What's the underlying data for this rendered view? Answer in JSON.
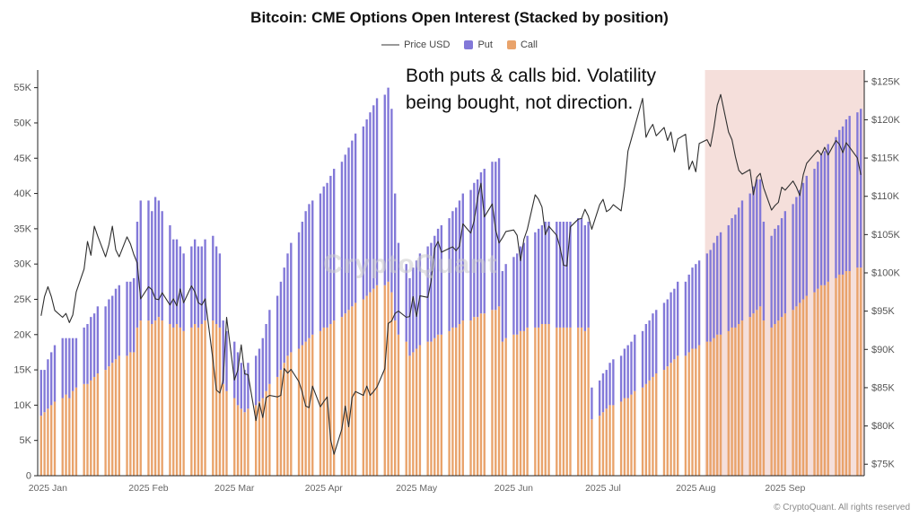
{
  "title": "Bitcoin: CME Options Open Interest (Stacked by position)",
  "legend": {
    "price": "Price USD",
    "put": "Put",
    "call": "Call"
  },
  "annotation": {
    "line1": "Both puts & calls bid. Volatility",
    "line2": "being bought, not direction."
  },
  "watermark": "CryptoQuant",
  "footer": "© CryptoQuant. All rights reserved",
  "colors": {
    "put": "#8278d8",
    "call": "#e9a36b",
    "price": "#2f2f2f",
    "legend_line": "#9a9a9a",
    "highlight": "#f5dfdb",
    "axis": "#222222",
    "tick_text": "#555555",
    "month_text": "#666666"
  },
  "chart_data": {
    "type": "bar",
    "stacked": true,
    "units": "contracts (thousands), price in $K USD",
    "title": "Bitcoin: CME Options Open Interest (Stacked by position)",
    "left_axis": {
      "min": 0,
      "max": 57.5,
      "tick_values": [
        0,
        5,
        10,
        15,
        20,
        25,
        30,
        35,
        40,
        45,
        50,
        55
      ],
      "tick_labels": [
        "0",
        "5K",
        "10K",
        "15K",
        "20K",
        "25K",
        "30K",
        "35K",
        "40K",
        "45K",
        "50K",
        "55K"
      ]
    },
    "right_axis": {
      "min": 73.5,
      "max": 126.5,
      "tick_values": [
        75,
        80,
        85,
        90,
        95,
        100,
        105,
        110,
        115,
        120,
        125
      ],
      "tick_labels": [
        "$75K",
        "$80K",
        "$85K",
        "$90K",
        "$95K",
        "$100K",
        "$105K",
        "$110K",
        "$115K",
        "$120K",
        "$125K"
      ]
    },
    "months": [
      {
        "label": "2025 Jan",
        "start": 0
      },
      {
        "label": "2025 Feb",
        "start": 23
      },
      {
        "label": "2025 Mar",
        "start": 43
      },
      {
        "label": "2025 Apr",
        "start": 64
      },
      {
        "label": "2025 May",
        "start": 86
      },
      {
        "label": "2025 Jun",
        "start": 108
      },
      {
        "label": "2025 Jul",
        "start": 129
      },
      {
        "label": "2025 Aug",
        "start": 151
      },
      {
        "label": "2025 Sep",
        "start": 172
      }
    ],
    "highlight_region": {
      "start_index": 155,
      "end_index": 191
    },
    "series": [
      {
        "name": "Call",
        "color": "#e9a36b",
        "values": [
          8.5,
          9,
          9.5,
          10,
          10.5,
          11,
          11.5,
          11,
          12,
          12.5,
          13,
          13,
          13.5,
          14,
          14.5,
          15,
          15.5,
          16,
          16.5,
          17,
          17,
          17.5,
          17.5,
          21,
          22,
          22,
          21.5,
          22,
          22.5,
          22,
          21.5,
          21,
          21.5,
          21,
          20.5,
          21,
          21.5,
          21,
          21.5,
          22,
          22,
          21.5,
          21,
          13,
          12,
          11,
          10,
          9.5,
          9,
          9.5,
          10,
          10.5,
          11,
          12,
          13,
          14,
          15,
          16,
          17,
          17.5,
          18,
          18.5,
          19,
          19.5,
          20,
          20.5,
          21,
          21,
          21.5,
          22,
          22.5,
          23,
          23.5,
          24,
          24.5,
          25,
          25.5,
          26,
          26.5,
          27,
          27,
          27.5,
          26,
          22,
          20,
          19,
          17,
          17.5,
          18,
          18.5,
          19,
          19,
          19.5,
          20,
          20,
          20.5,
          21,
          21,
          21.5,
          22,
          22,
          22.5,
          22.5,
          23,
          23,
          23.5,
          23.5,
          24,
          19,
          19.5,
          20,
          20,
          20.5,
          20.5,
          21,
          21,
          21,
          21.5,
          21.5,
          21.5,
          21,
          21,
          21,
          21,
          21,
          21,
          21,
          20.5,
          21,
          8,
          8.5,
          9,
          9.5,
          10,
          10,
          10.5,
          11,
          11,
          11.5,
          12,
          12.5,
          13,
          13.5,
          14,
          14.5,
          15,
          15.5,
          16,
          16.5,
          17,
          17,
          17.5,
          18,
          18,
          18.5,
          19,
          19,
          19.5,
          20,
          20,
          20.5,
          21,
          21,
          21.5,
          22,
          22.5,
          23,
          23.5,
          24,
          22,
          21,
          21.5,
          22,
          22.5,
          23,
          23.5,
          24,
          24.5,
          25,
          25.5,
          26,
          26.5,
          27,
          27,
          27.5,
          28,
          28.5,
          28.5,
          29,
          29,
          29.5,
          29.5
        ]
      },
      {
        "name": "Put",
        "color": "#8278d8",
        "values": [
          6.5,
          6,
          7,
          7.5,
          8,
          8.5,
          8,
          8.5,
          7.5,
          7,
          8,
          8.5,
          9,
          9,
          9.5,
          9,
          9.5,
          9.5,
          10,
          10,
          10.5,
          10,
          10.5,
          15,
          17,
          17,
          16,
          17.5,
          16.5,
          15.5,
          14,
          12.5,
          12,
          11.5,
          11,
          11.5,
          12,
          11.5,
          11,
          11.5,
          12,
          11,
          10.5,
          9,
          8.5,
          8,
          7.5,
          6.5,
          6,
          6.5,
          7,
          7.5,
          8.5,
          9.5,
          10.5,
          11.5,
          12.5,
          13.5,
          14.5,
          15.5,
          16.5,
          17.5,
          18.5,
          19,
          19,
          19.5,
          20,
          20.5,
          21,
          21.5,
          22,
          22.5,
          23,
          23.5,
          24,
          24.5,
          25,
          25.5,
          26,
          26.5,
          27,
          27.5,
          26,
          18,
          13,
          11,
          11,
          12,
          12.5,
          13,
          13.5,
          14,
          14.5,
          15,
          15.5,
          16,
          16.5,
          17,
          17.5,
          18,
          18.5,
          19,
          19.5,
          20,
          20.5,
          21,
          21,
          21,
          10,
          10.5,
          11,
          11.5,
          12,
          12.5,
          13,
          13.5,
          14,
          14,
          14.5,
          14.5,
          15,
          15,
          15,
          15,
          15,
          15.5,
          15.5,
          15,
          15,
          4.5,
          5,
          5.5,
          5.5,
          6,
          6.5,
          6.5,
          7,
          7.5,
          7.5,
          8,
          8,
          8.5,
          8.5,
          9,
          9,
          9.5,
          9.5,
          10,
          10,
          10.5,
          10.5,
          11,
          11.5,
          12,
          12,
          12.5,
          13,
          13.5,
          14,
          14.5,
          15,
          15.5,
          16,
          16.5,
          17,
          17.5,
          18,
          18.5,
          18,
          14,
          13,
          13.5,
          13.5,
          14,
          14.5,
          15,
          15.5,
          16,
          16.5,
          17,
          17.5,
          18,
          18.5,
          19,
          19.5,
          20,
          20.5,
          21,
          21.5,
          22,
          22,
          22.5
        ]
      }
    ],
    "line_series": {
      "name": "Price USD",
      "axis": "right",
      "color": "#2f2f2f",
      "values": [
        94.4,
        96.9,
        98.2,
        96.9,
        95.1,
        94.2,
        94.7,
        93.5,
        94.5,
        97.5,
        100.5,
        104.1,
        102.3,
        106.1,
        104.8,
        102.1,
        103.7,
        106.1,
        103.0,
        102.1,
        104.7,
        103.8,
        102.4,
        101.3,
        96.6,
        98.2,
        97.8,
        96.6,
        96.5,
        97.4,
        95.8,
        96.6,
        95.7,
        97.9,
        96.1,
        98.3,
        97.5,
        96.1,
        95.8,
        96.6,
        88.6,
        84.7,
        84.3,
        86.0,
        94.2,
        86.0,
        87.3,
        90.6,
        86.8,
        86.7,
        80.7,
        83.0,
        81.1,
        83.7,
        84.0,
        83.8,
        84.0,
        87.5,
        86.9,
        87.4,
        85.8,
        84.4,
        82.6,
        82.4,
        85.2,
        82.5,
        83.2,
        83.8,
        78.2,
        76.3,
        79.6,
        82.6,
        79.9,
        83.7,
        84.5,
        84.0,
        85.2,
        84.0,
        84.5,
        85.1,
        87.5,
        93.4,
        93.7,
        94.7,
        95.0,
        94.2,
        94.3,
        96.9,
        94.3,
        97.0,
        96.8,
        99.0,
        103.2,
        104.1,
        102.7,
        103.2,
        103.4,
        102.9,
        103.5,
        106.4,
        105.2,
        106.8,
        109.7,
        111.7,
        107.3,
        109.0,
        105.6,
        103.9,
        104.6,
        105.4,
        105.6,
        104.9,
        101.6,
        104.4,
        105.7,
        110.2,
        109.6,
        108.6,
        105.0,
        106.1,
        104.9,
        103.3,
        101.0,
        100.9,
        106.0,
        107.0,
        107.1,
        108.3,
        107.4,
        105.7,
        108.9,
        109.6,
        108.0,
        108.3,
        108.9,
        108.1,
        111.3,
        115.9,
        117.5,
        119.1,
        122.8,
        117.7,
        118.7,
        119.4,
        117.9,
        119.0,
        117.3,
        118.4,
        115.8,
        117.5,
        118.1,
        113.5,
        114.6,
        113.2,
        116.9,
        117.4,
        116.5,
        118.9,
        121.9,
        123.3,
        118.4,
        117.4,
        115.2,
        113.4,
        112.9,
        113.5,
        110.2,
        112.5,
        113.0,
        111.1,
        108.2,
        108.8,
        109.2,
        111.2,
        110.8,
        112.0,
        111.2,
        110.1,
        112.8,
        114.3,
        115.5,
        116.0,
        115.4,
        116.4,
        115.4,
        117.3,
        116.8,
        115.7,
        117.0,
        116.4,
        115.0,
        112.8
      ]
    }
  }
}
